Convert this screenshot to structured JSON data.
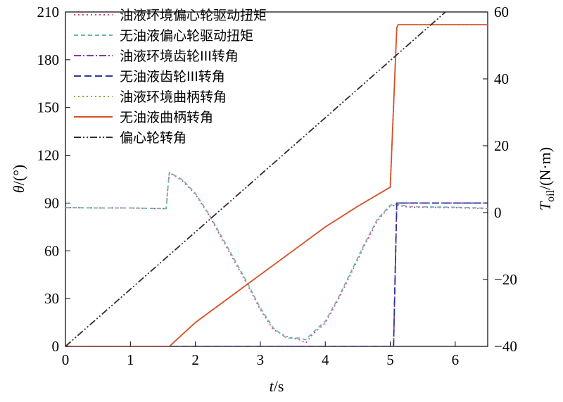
{
  "chart_data": {
    "type": "line",
    "xlabel": {
      "var": "t",
      "unit": "/s"
    },
    "ylabel_left": {
      "var": "θ",
      "unit": "/(°)"
    },
    "ylabel_right": {
      "var": "T",
      "sub": "oil",
      "unit": "/(N·m)"
    },
    "xlim": [
      0,
      6.5
    ],
    "ylim_left": [
      0,
      210
    ],
    "ylim_right": [
      -40,
      60
    ],
    "xticks": [
      "0",
      "1",
      "2",
      "3",
      "4",
      "5",
      "6"
    ],
    "yticks_left": [
      "0",
      "30",
      "60",
      "90",
      "120",
      "150",
      "180",
      "210"
    ],
    "yticks_right": [
      "−40",
      "−20",
      "0",
      "20",
      "40",
      "60"
    ],
    "grid": false,
    "legend_position": "top-left",
    "series": [
      {
        "name": "油液环境偏心轮驱动扭矩",
        "axis": "right",
        "color": "#e0407a",
        "dash": "2,4",
        "x": [
          0,
          0.5,
          1.0,
          1.5,
          1.55,
          1.58,
          1.6,
          1.8,
          2.0,
          2.2,
          2.4,
          2.6,
          2.8,
          3.0,
          3.2,
          3.4,
          3.6,
          3.7,
          3.8,
          4.0,
          4.2,
          4.4,
          4.6,
          4.8,
          5.0,
          5.1,
          5.3,
          5.6,
          6.0,
          6.5
        ],
        "y": [
          1.5,
          1.4,
          1.4,
          1.2,
          1.2,
          8.0,
          12.0,
          9.5,
          5.5,
          -0.5,
          -7.5,
          -14.5,
          -21.5,
          -29.0,
          -35.0,
          -37.0,
          -38.0,
          -39.0,
          -36.5,
          -33.0,
          -26.0,
          -18.0,
          -10.0,
          -2.5,
          2.0,
          2.2,
          1.6,
          1.6,
          1.5,
          1.2
        ]
      },
      {
        "name": "无油液偏心轮驱动扭矩",
        "axis": "right",
        "color": "#6fb5b0",
        "dash": "6,4",
        "x": [
          0,
          0.5,
          1.0,
          1.5,
          1.55,
          1.58,
          1.6,
          1.8,
          2.0,
          2.2,
          2.4,
          2.6,
          2.8,
          3.0,
          3.2,
          3.4,
          3.6,
          3.7,
          3.8,
          4.0,
          4.2,
          4.4,
          4.6,
          4.8,
          5.0,
          5.1,
          5.3,
          5.6,
          6.0,
          6.5
        ],
        "y": [
          1.5,
          1.4,
          1.4,
          1.2,
          1.2,
          8.0,
          12.0,
          9.8,
          5.8,
          -0.2,
          -7.0,
          -14.0,
          -21.0,
          -28.5,
          -34.5,
          -37.5,
          -37.5,
          -38.0,
          -36.0,
          -32.5,
          -25.5,
          -17.5,
          -9.5,
          -2.0,
          2.2,
          2.5,
          1.8,
          1.7,
          1.6,
          1.3
        ]
      },
      {
        "name": "油液环境齿轮III转角",
        "axis": "left",
        "color": "#8a3a9a",
        "dash": "10,3,2,3",
        "x": [
          0,
          1.0,
          2.0,
          3.0,
          4.0,
          4.9,
          5.0,
          5.05,
          5.1,
          6.5
        ],
        "y": [
          0,
          0,
          0,
          0,
          0,
          0,
          0,
          0,
          90,
          90
        ]
      },
      {
        "name": "无油液齿轮III转角",
        "axis": "left",
        "color": "#2a3a96",
        "dash": "10,5",
        "x": [
          0,
          1.0,
          2.0,
          3.0,
          4.0,
          4.9,
          5.0,
          5.05,
          5.1,
          6.5
        ],
        "y": [
          0,
          0,
          0,
          0,
          0,
          0,
          0,
          0,
          90,
          90
        ]
      },
      {
        "name": "油液环境曲柄转角",
        "axis": "left",
        "color": "#8aa63a",
        "dash": "2,4",
        "x": [
          0,
          1.6,
          2.0,
          2.5,
          3.0,
          3.5,
          4.0,
          4.5,
          5.0,
          5.1,
          5.12,
          6.5
        ],
        "y": [
          0,
          0,
          15,
          30,
          45,
          60,
          75,
          88,
          100,
          200,
          202,
          202
        ]
      },
      {
        "name": "无油液曲柄转角",
        "axis": "left",
        "color": "#d9502a",
        "dash": "",
        "x": [
          0,
          1.6,
          2.0,
          2.5,
          3.0,
          3.5,
          4.0,
          4.5,
          5.0,
          5.1,
          5.12,
          6.5
        ],
        "y": [
          0,
          0,
          15,
          30,
          45,
          60,
          75,
          88,
          100,
          200,
          202,
          202
        ]
      },
      {
        "name": "偏心轮转角",
        "axis": "left",
        "color": "#3a2a2a",
        "dash": "10,3,2,3,2,3",
        "x": [
          0,
          5.85
        ],
        "y": [
          0,
          210
        ]
      }
    ]
  }
}
